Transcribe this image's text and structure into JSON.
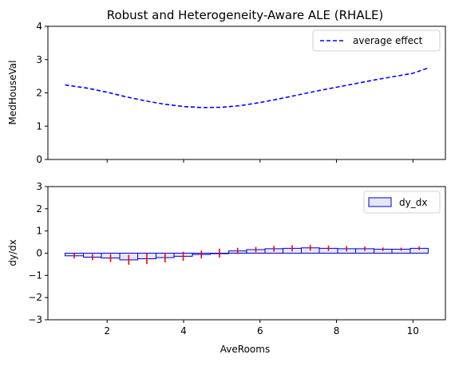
{
  "chart_data": [
    {
      "type": "line",
      "title": "Robust and Heterogeneity-Aware ALE (RHALE)",
      "xlabel": "",
      "ylabel": "MedHouseVal",
      "xlim": [
        0.45,
        10.85
      ],
      "ylim": [
        0,
        4
      ],
      "yticks": [
        "0",
        "1",
        "2",
        "3",
        "4"
      ],
      "xticks": [
        2,
        4,
        6,
        8,
        10
      ],
      "legend": "top-right",
      "series": [
        {
          "name": "average effect",
          "color": "#0000ff",
          "style": "dashed",
          "x": [
            0.9,
            1.5,
            2.0,
            2.5,
            3.0,
            3.5,
            4.0,
            4.5,
            5.0,
            5.5,
            6.0,
            6.5,
            7.0,
            7.5,
            8.0,
            8.5,
            9.0,
            9.5,
            10.0,
            10.4
          ],
          "y": [
            2.24,
            2.14,
            2.02,
            1.88,
            1.76,
            1.66,
            1.59,
            1.56,
            1.57,
            1.62,
            1.71,
            1.82,
            1.94,
            2.06,
            2.17,
            2.28,
            2.39,
            2.49,
            2.59,
            2.75
          ]
        }
      ]
    },
    {
      "type": "bar",
      "title": "",
      "xlabel": "AveRooms",
      "ylabel": "dy/dx",
      "xlim": [
        0.45,
        10.85
      ],
      "ylim": [
        -3,
        3
      ],
      "yticks": [
        "−3",
        "−2",
        "−1",
        "0",
        "1",
        "2",
        "3"
      ],
      "xticks": [
        "2",
        "4",
        "6",
        "8",
        "10"
      ],
      "legend": "top-right",
      "series": [
        {
          "name": "dy_dx",
          "fill": "#e6e6f5",
          "edge": "#0000cd",
          "error_color": "#ff0000",
          "bin_edges": [
            0.9,
            1.38,
            1.85,
            2.33,
            2.8,
            3.28,
            3.75,
            4.23,
            4.7,
            5.18,
            5.65,
            6.13,
            6.6,
            7.08,
            7.55,
            8.03,
            8.5,
            8.98,
            9.45,
            9.93,
            10.4
          ],
          "values": [
            -0.12,
            -0.18,
            -0.22,
            -0.3,
            -0.25,
            -0.2,
            -0.14,
            -0.06,
            0.0,
            0.1,
            0.16,
            0.2,
            0.22,
            0.24,
            0.22,
            0.2,
            0.2,
            0.18,
            0.18,
            0.22
          ],
          "errors": [
            0.12,
            0.14,
            0.18,
            0.22,
            0.24,
            0.22,
            0.2,
            0.18,
            0.2,
            0.14,
            0.12,
            0.13,
            0.14,
            0.13,
            0.12,
            0.12,
            0.1,
            0.08,
            0.07,
            0.08
          ]
        }
      ]
    }
  ]
}
